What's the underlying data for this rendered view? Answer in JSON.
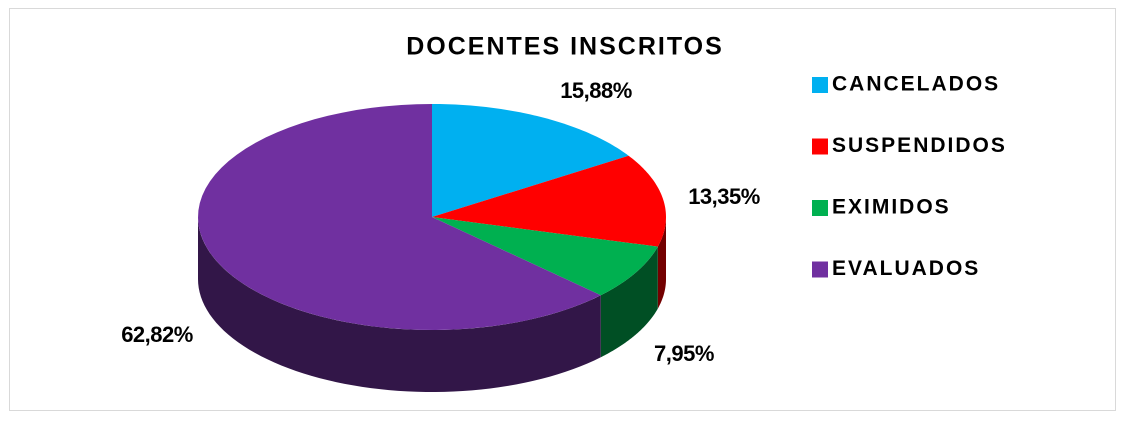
{
  "chart_data": {
    "type": "pie",
    "title": "DOCENTES INSCRITOS",
    "categories": [
      "CANCELADOS",
      "SUSPENDIDOS",
      "EXIMIDOS",
      "EVALUADOS"
    ],
    "values": [
      15.88,
      13.35,
      7.95,
      62.82
    ],
    "value_labels": [
      "15,88%",
      "13,35%",
      "7,95%",
      "62,82%"
    ],
    "colors": [
      "#00b0f0",
      "#ff0000",
      "#00b050",
      "#7030a0"
    ],
    "legend": "right"
  }
}
